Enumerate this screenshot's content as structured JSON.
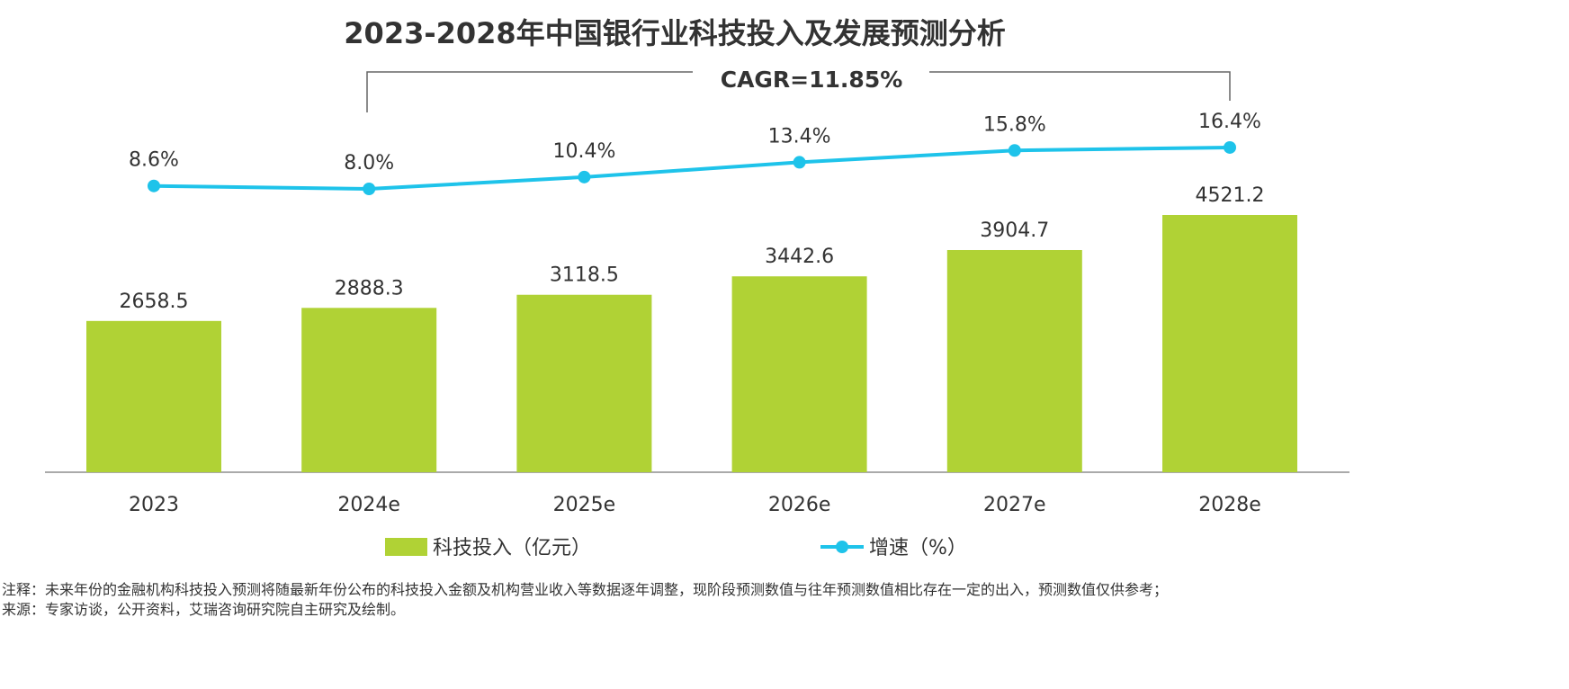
{
  "chart_data": {
    "type": "bar+line",
    "title": "2023-2028年中国银行业科技投入及发展预测分析",
    "categories": [
      "2023",
      "2024e",
      "2025e",
      "2026e",
      "2027e",
      "2028e"
    ],
    "series": [
      {
        "name": "科技投入（亿元）",
        "type": "bar",
        "color": "#b0d235",
        "values": [
          2658.5,
          2888.3,
          3118.5,
          3442.6,
          3904.7,
          4521.2
        ],
        "labels": [
          "2658.5",
          "2888.3",
          "3118.5",
          "3442.6",
          "3904.7",
          "4521.2"
        ]
      },
      {
        "name": "增速（%）",
        "type": "line",
        "color": "#1ec3ea",
        "values": [
          8.6,
          8.0,
          10.4,
          13.4,
          15.8,
          16.4
        ],
        "labels": [
          "8.6%",
          "8.0%",
          "10.4%",
          "13.4%",
          "15.8%",
          "16.4%"
        ]
      }
    ],
    "annotation": "CAGR=11.85%",
    "legend_position": "bottom",
    "grid": false
  },
  "notes": [
    "注释：未来年份的金融机构科技投入预测将随最新年份公布的科技投入金额及机构营业收入等数据逐年调整，现阶段预测数值与往年预测数值相比存在一定的出入，预测数值仅供参考；",
    "来源：专家访谈，公开资料，艾瑞咨询研究院自主研究及绘制。"
  ]
}
